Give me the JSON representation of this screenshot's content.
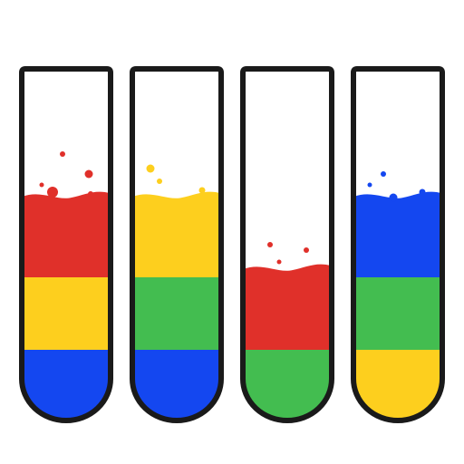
{
  "game": {
    "type": "water-sort-puzzle",
    "colors": {
      "red": "#e0302a",
      "yellow": "#fdcf1e",
      "green": "#43bd50",
      "blue": "#1447f0",
      "outline": "#1a1a1a",
      "background": "#ffffff"
    },
    "tubes": [
      {
        "id": 1,
        "layers_bottom_to_top": [
          "blue",
          "yellow",
          "red"
        ],
        "splash": "red"
      },
      {
        "id": 2,
        "layers_bottom_to_top": [
          "blue",
          "green",
          "yellow"
        ],
        "splash": "yellow"
      },
      {
        "id": 3,
        "layers_bottom_to_top": [
          "green",
          "red"
        ],
        "splash": "red"
      },
      {
        "id": 4,
        "layers_bottom_to_top": [
          "yellow",
          "green",
          "blue"
        ],
        "splash": "blue"
      }
    ]
  }
}
